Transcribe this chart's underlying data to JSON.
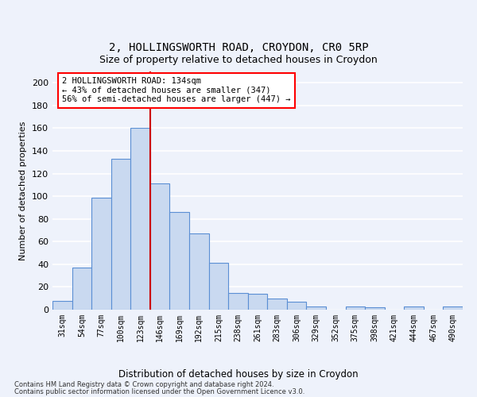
{
  "title1": "2, HOLLINGSWORTH ROAD, CROYDON, CR0 5RP",
  "title2": "Size of property relative to detached houses in Croydon",
  "xlabel": "Distribution of detached houses by size in Croydon",
  "ylabel": "Number of detached properties",
  "categories": [
    "31sqm",
    "54sqm",
    "77sqm",
    "100sqm",
    "123sqm",
    "146sqm",
    "169sqm",
    "192sqm",
    "215sqm",
    "238sqm",
    "261sqm",
    "283sqm",
    "306sqm",
    "329sqm",
    "352sqm",
    "375sqm",
    "398sqm",
    "421sqm",
    "444sqm",
    "467sqm",
    "490sqm"
  ],
  "values": [
    8,
    37,
    99,
    133,
    160,
    111,
    86,
    67,
    41,
    15,
    14,
    10,
    7,
    3,
    0,
    3,
    2,
    0,
    3,
    0,
    3
  ],
  "bar_color": "#c9d9f0",
  "bar_edge_color": "#5b8fd4",
  "annotation_box_text": "2 HOLLINGSWORTH ROAD: 134sqm\n← 43% of detached houses are smaller (347)\n56% of semi-detached houses are larger (447) →",
  "red_line_color": "#cc0000",
  "ylim": [
    0,
    210
  ],
  "yticks": [
    0,
    20,
    40,
    60,
    80,
    100,
    120,
    140,
    160,
    180,
    200
  ],
  "footer_line1": "Contains HM Land Registry data © Crown copyright and database right 2024.",
  "footer_line2": "Contains public sector information licensed under the Open Government Licence v3.0.",
  "background_color": "#eef2fb",
  "plot_bg_color": "#eef2fb",
  "grid_color": "#ffffff",
  "title1_fontsize": 10,
  "title2_fontsize": 9,
  "xlabel_fontsize": 8.5,
  "ylabel_fontsize": 8
}
